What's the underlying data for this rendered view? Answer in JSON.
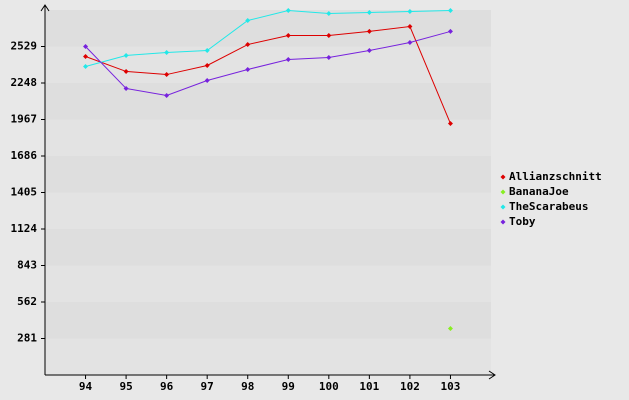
{
  "chart_data": {
    "type": "line",
    "x": [
      94,
      95,
      96,
      97,
      98,
      99,
      100,
      101,
      102,
      103
    ],
    "xlim": [
      93,
      104
    ],
    "xticks": [
      94,
      95,
      96,
      97,
      98,
      99,
      100,
      101,
      102,
      103
    ],
    "ylim": [
      0,
      2810
    ],
    "yticks": [
      281,
      562,
      843,
      1124,
      1405,
      1686,
      1967,
      2248,
      2529
    ],
    "grid": true,
    "legend": "right",
    "series": [
      {
        "name": "Allianzschnitt",
        "color": "#dd0000",
        "values": [
          2452,
          2337,
          2313,
          2383,
          2544,
          2614,
          2614,
          2645,
          2683,
          1936
        ]
      },
      {
        "name": "BananaJoe",
        "color": "#88ee22",
        "values": [
          null,
          null,
          null,
          null,
          null,
          null,
          null,
          null,
          null,
          358
        ]
      },
      {
        "name": "TheScarabeus",
        "color": "#22e8e8",
        "values": [
          2375,
          2460,
          2483,
          2498,
          2729,
          2806,
          2783,
          2791,
          2798,
          2806
        ]
      },
      {
        "name": "Toby",
        "color": "#7722dd",
        "values": [
          2529,
          2206,
          2152,
          2267,
          2352,
          2429,
          2444,
          2498,
          2560,
          2645
        ]
      }
    ]
  }
}
